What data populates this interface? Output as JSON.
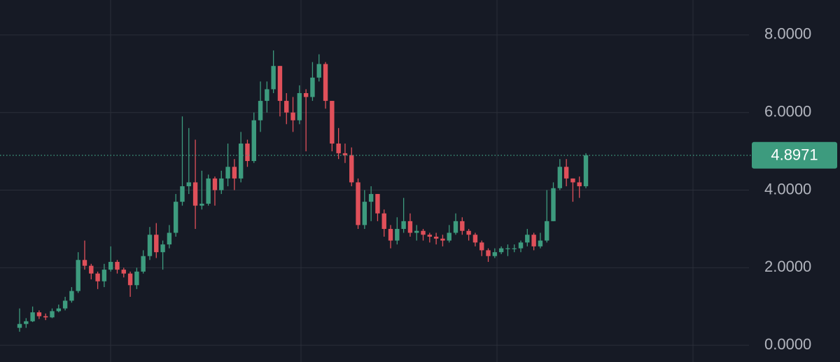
{
  "chart_data": {
    "type": "candlestick",
    "categories": [
      null,
      null,
      null,
      null,
      null,
      null,
      null,
      null,
      null,
      null,
      null,
      null,
      null,
      null,
      null,
      null,
      null,
      null,
      null,
      null,
      null,
      null,
      null,
      null,
      null,
      null,
      null,
      null,
      null,
      null,
      null,
      null,
      null,
      null,
      null,
      null,
      null,
      null,
      null,
      null,
      null,
      null,
      null,
      null,
      null,
      null,
      null,
      null,
      null,
      null,
      null,
      null,
      null,
      null,
      null,
      null,
      null,
      null,
      null,
      null,
      null,
      null,
      null,
      null,
      null,
      null,
      null,
      null,
      null,
      null,
      null,
      null,
      null,
      null,
      null,
      null,
      null,
      null,
      null,
      null,
      null,
      null,
      null,
      null,
      null,
      null,
      null,
      null
    ],
    "open": [
      0.45,
      0.55,
      0.62,
      0.85,
      0.75,
      0.72,
      0.88,
      0.95,
      1.15,
      1.4,
      2.2,
      2.05,
      1.85,
      1.65,
      1.95,
      2.15,
      1.95,
      1.85,
      1.55,
      1.9,
      2.3,
      2.85,
      2.4,
      2.6,
      2.9,
      3.7,
      4.1,
      4.2,
      3.6,
      3.65,
      4.3,
      4.0,
      4.3,
      4.6,
      4.3,
      5.2,
      4.75,
      5.8,
      6.3,
      6.6,
      7.2,
      6.3,
      6.0,
      5.8,
      6.5,
      6.4,
      6.9,
      7.25,
      6.3,
      5.2,
      4.95,
      4.9,
      4.2,
      3.1,
      3.7,
      3.9,
      3.4,
      3.0,
      2.7,
      3.0,
      3.2,
      2.9,
      2.95,
      2.85,
      2.8,
      2.75,
      2.7,
      2.9,
      3.2,
      2.95,
      2.85,
      2.65,
      2.45,
      2.3,
      2.4,
      2.5,
      2.5,
      2.5,
      2.65,
      2.85,
      2.55,
      2.7,
      3.2,
      4.05,
      4.6,
      4.3,
      4.2,
      4.1
    ],
    "high": [
      0.95,
      0.7,
      1.0,
      0.9,
      0.82,
      0.95,
      1.05,
      1.25,
      1.5,
      2.4,
      2.7,
      2.1,
      1.9,
      2.1,
      2.55,
      2.2,
      2.0,
      1.9,
      2.0,
      2.45,
      3.05,
      3.15,
      2.7,
      3.1,
      3.9,
      5.9,
      5.6,
      5.3,
      4.5,
      4.4,
      4.35,
      4.5,
      5.2,
      4.8,
      5.5,
      5.3,
      6.0,
      6.8,
      6.8,
      7.6,
      7.2,
      6.5,
      6.4,
      6.7,
      6.6,
      7.3,
      7.5,
      7.3,
      6.3,
      5.6,
      5.2,
      5.1,
      4.3,
      4.0,
      4.1,
      3.9,
      3.5,
      3.1,
      3.3,
      3.8,
      3.4,
      3.1,
      3.0,
      2.9,
      2.9,
      2.85,
      3.1,
      3.4,
      3.3,
      3.0,
      2.9,
      2.7,
      2.5,
      2.5,
      2.55,
      2.6,
      2.6,
      2.7,
      3.0,
      2.9,
      2.9,
      4.0,
      4.2,
      4.8,
      4.8,
      4.3,
      4.35,
      4.95
    ],
    "low": [
      0.35,
      0.45,
      0.6,
      0.68,
      0.65,
      0.7,
      0.85,
      0.9,
      1.1,
      1.35,
      1.95,
      1.7,
      1.45,
      1.5,
      1.9,
      1.85,
      1.75,
      1.25,
      1.45,
      1.85,
      2.2,
      2.25,
      1.95,
      2.5,
      2.8,
      3.6,
      3.9,
      3.0,
      3.5,
      3.6,
      3.6,
      3.9,
      4.1,
      4.0,
      4.2,
      4.6,
      4.7,
      5.5,
      6.0,
      6.5,
      5.9,
      5.7,
      5.5,
      5.7,
      5.0,
      6.3,
      6.8,
      6.1,
      5.0,
      4.8,
      4.7,
      4.1,
      3.0,
      3.0,
      3.2,
      3.2,
      2.8,
      2.5,
      2.6,
      2.9,
      2.8,
      2.7,
      2.7,
      2.65,
      2.6,
      2.55,
      2.65,
      2.85,
      2.85,
      2.7,
      2.55,
      2.3,
      2.15,
      2.25,
      2.35,
      2.3,
      2.4,
      2.4,
      2.55,
      2.45,
      2.5,
      2.65,
      3.2,
      4.0,
      4.1,
      3.7,
      3.8,
      4.05
    ],
    "close": [
      0.55,
      0.62,
      0.85,
      0.75,
      0.72,
      0.88,
      0.95,
      1.15,
      1.4,
      2.2,
      2.05,
      1.85,
      1.65,
      1.95,
      2.15,
      1.95,
      1.85,
      1.55,
      1.9,
      2.3,
      2.85,
      2.4,
      2.6,
      2.9,
      3.7,
      4.1,
      4.2,
      3.6,
      3.65,
      4.3,
      4.0,
      4.3,
      4.6,
      4.3,
      5.2,
      4.75,
      5.8,
      6.3,
      6.6,
      7.2,
      6.3,
      6.0,
      5.8,
      6.5,
      6.4,
      6.9,
      7.25,
      6.3,
      5.2,
      4.95,
      4.9,
      4.2,
      3.1,
      3.7,
      3.9,
      3.4,
      3.0,
      2.7,
      3.0,
      3.2,
      2.9,
      2.95,
      2.85,
      2.8,
      2.75,
      2.7,
      2.9,
      3.2,
      2.95,
      2.85,
      2.65,
      2.45,
      2.3,
      2.4,
      2.5,
      2.5,
      2.5,
      2.65,
      2.85,
      2.55,
      2.7,
      3.2,
      4.05,
      4.6,
      4.3,
      4.2,
      4.1,
      4.8971
    ],
    "up_color": "#3d9b7e",
    "down_color": "#e0505a",
    "current_price": 4.8971,
    "ylim": [
      -0.43,
      8.9
    ],
    "yticks": [
      {
        "value": 0,
        "label": "0.0000"
      },
      {
        "value": 2,
        "label": "2.0000"
      },
      {
        "value": 4,
        "label": "4.0000"
      },
      {
        "value": 6,
        "label": "6.0000"
      },
      {
        "value": 8,
        "label": "8.0000"
      }
    ],
    "grid": true
  }
}
